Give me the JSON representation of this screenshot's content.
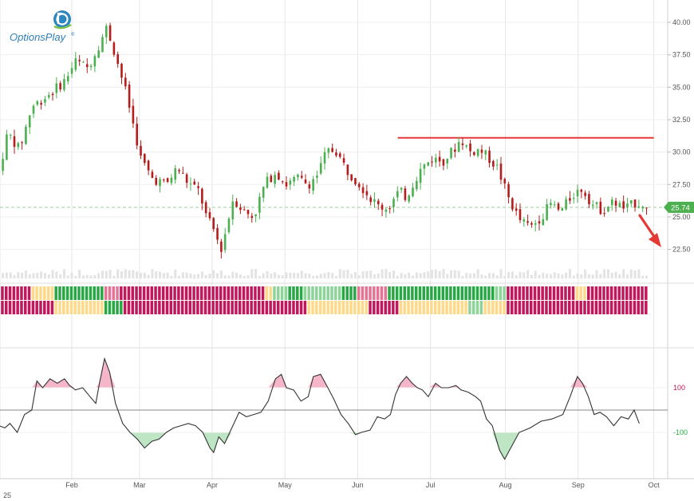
{
  "brand": {
    "name": "OptionsPlay",
    "trademark": "®"
  },
  "chart_data": [
    {
      "type": "candlestick",
      "title": "",
      "price_axis": {
        "ticks": [
          "40.00",
          "37.50",
          "35.00",
          "32.50",
          "30.00",
          "27.50",
          "25.00",
          "22.50"
        ],
        "range": [
          20.2,
          40.8
        ]
      },
      "last_price": {
        "value": 25.74,
        "label": "25.74"
      },
      "resistance": {
        "value": 31.1,
        "from": 5.48,
        "to": 9.0
      },
      "projection": {
        "direction": "down",
        "color": "#e53935"
      },
      "x_axis": {
        "labels": [
          "25",
          "Feb",
          "Mar",
          "Apr",
          "May",
          "Jun",
          "Jul",
          "Aug",
          "Sep",
          "Oct"
        ],
        "positions": [
          0,
          1,
          1.93,
          2.93,
          3.93,
          4.93,
          5.93,
          6.96,
          7.96,
          9.0
        ]
      },
      "anchors": [
        [
          0.0,
          28.5
        ],
        [
          0.12,
          31.5
        ],
        [
          0.28,
          30.2
        ],
        [
          0.45,
          33.5
        ],
        [
          0.7,
          34.5
        ],
        [
          0.9,
          35.5
        ],
        [
          1.05,
          37.0
        ],
        [
          1.22,
          36.5
        ],
        [
          1.35,
          38.0
        ],
        [
          1.48,
          39.6
        ],
        [
          1.6,
          37.5
        ],
        [
          1.75,
          34.5
        ],
        [
          1.85,
          32.0
        ],
        [
          1.95,
          29.5
        ],
        [
          2.1,
          28.0
        ],
        [
          2.3,
          27.5
        ],
        [
          2.45,
          28.8
        ],
        [
          2.6,
          27.6
        ],
        [
          2.75,
          27.0
        ],
        [
          2.85,
          25.0
        ],
        [
          2.95,
          24.0
        ],
        [
          3.05,
          22.5
        ],
        [
          3.12,
          24.0
        ],
        [
          3.22,
          26.5
        ],
        [
          3.35,
          25.5
        ],
        [
          3.5,
          25.0
        ],
        [
          3.65,
          27.5
        ],
        [
          3.8,
          28.5
        ],
        [
          3.95,
          27.5
        ],
        [
          4.1,
          28.0
        ],
        [
          4.25,
          27.5
        ],
        [
          4.38,
          28.3
        ],
        [
          4.5,
          30.0
        ],
        [
          4.62,
          30.2
        ],
        [
          4.78,
          28.6
        ],
        [
          4.95,
          27.6
        ],
        [
          5.1,
          26.5
        ],
        [
          5.22,
          25.8
        ],
        [
          5.35,
          25.7
        ],
        [
          5.5,
          27.0
        ],
        [
          5.6,
          26.5
        ],
        [
          5.68,
          27.5
        ],
        [
          5.8,
          28.7
        ],
        [
          5.95,
          29.5
        ],
        [
          6.1,
          29.3
        ],
        [
          6.25,
          30.2
        ],
        [
          6.35,
          31.0
        ],
        [
          6.48,
          30.0
        ],
        [
          6.6,
          30.2
        ],
        [
          6.72,
          29.6
        ],
        [
          6.85,
          28.8
        ],
        [
          7.0,
          26.5
        ],
        [
          7.15,
          24.8
        ],
        [
          7.3,
          24.2
        ],
        [
          7.45,
          25.0
        ],
        [
          7.58,
          26.0
        ],
        [
          7.72,
          25.4
        ],
        [
          7.88,
          26.7
        ],
        [
          8.02,
          27.2
        ],
        [
          8.15,
          26.0
        ],
        [
          8.3,
          25.5
        ],
        [
          8.45,
          26.2
        ],
        [
          8.6,
          25.6
        ],
        [
          8.75,
          26.1
        ],
        [
          8.85,
          26.0
        ],
        [
          8.9,
          25.5
        ]
      ]
    },
    {
      "type": "heatmap",
      "title": "",
      "rows": 2,
      "palette": {
        "bear": "#c2185b",
        "bear_light": "#e57395",
        "bull": "#27a844",
        "bull_light": "#8ed49a",
        "neutral": "#ffd98a"
      },
      "row1": [
        {
          "from": 0.0,
          "to": 0.45,
          "state": "bear"
        },
        {
          "from": 0.45,
          "to": 0.75,
          "state": "neutral"
        },
        {
          "from": 0.75,
          "to": 1.45,
          "state": "bull"
        },
        {
          "from": 1.45,
          "to": 1.65,
          "state": "bear_light"
        },
        {
          "from": 1.65,
          "to": 3.65,
          "state": "bear"
        },
        {
          "from": 3.65,
          "to": 3.78,
          "state": "neutral"
        },
        {
          "from": 3.78,
          "to": 3.95,
          "state": "bull_light"
        },
        {
          "from": 3.95,
          "to": 4.2,
          "state": "bull"
        },
        {
          "from": 4.2,
          "to": 4.7,
          "state": "bull_light"
        },
        {
          "from": 4.7,
          "to": 4.95,
          "state": "bull"
        },
        {
          "from": 4.95,
          "to": 5.35,
          "state": "bear_light"
        },
        {
          "from": 5.35,
          "to": 5.65,
          "state": "bull"
        },
        {
          "from": 5.65,
          "to": 6.82,
          "state": "bull"
        },
        {
          "from": 6.82,
          "to": 6.98,
          "state": "bull_light"
        },
        {
          "from": 6.98,
          "to": 7.9,
          "state": "bear"
        },
        {
          "from": 7.9,
          "to": 8.1,
          "state": "neutral"
        },
        {
          "from": 8.1,
          "to": 8.88,
          "state": "bear"
        }
      ],
      "row2": [
        {
          "from": 0.0,
          "to": 0.78,
          "state": "bear"
        },
        {
          "from": 0.78,
          "to": 1.45,
          "state": "neutral"
        },
        {
          "from": 1.45,
          "to": 1.7,
          "state": "bull"
        },
        {
          "from": 1.7,
          "to": 4.25,
          "state": "bear"
        },
        {
          "from": 4.25,
          "to": 5.1,
          "state": "neutral"
        },
        {
          "from": 5.1,
          "to": 5.5,
          "state": "bear"
        },
        {
          "from": 5.5,
          "to": 6.45,
          "state": "neutral"
        },
        {
          "from": 6.45,
          "to": 6.65,
          "state": "bull_light"
        },
        {
          "from": 6.65,
          "to": 6.98,
          "state": "neutral"
        },
        {
          "from": 6.98,
          "to": 8.88,
          "state": "bear"
        }
      ]
    },
    {
      "type": "line",
      "title": "",
      "y_ticks": [
        {
          "value": 100,
          "label": "100",
          "color": "#c2185b"
        },
        {
          "value": -100,
          "label": "-100",
          "color": "#27a844"
        }
      ],
      "y_range": [
        -300,
        275
      ],
      "upper": 100,
      "lower": -100,
      "points": [
        [
          0.0,
          -70
        ],
        [
          0.08,
          -80
        ],
        [
          0.15,
          -60
        ],
        [
          0.25,
          -100
        ],
        [
          0.35,
          -20
        ],
        [
          0.45,
          0
        ],
        [
          0.52,
          130
        ],
        [
          0.6,
          100
        ],
        [
          0.7,
          140
        ],
        [
          0.8,
          120
        ],
        [
          0.9,
          140
        ],
        [
          0.97,
          110
        ],
        [
          1.05,
          90
        ],
        [
          1.15,
          100
        ],
        [
          1.25,
          60
        ],
        [
          1.33,
          30
        ],
        [
          1.38,
          120
        ],
        [
          1.45,
          230
        ],
        [
          1.52,
          170
        ],
        [
          1.6,
          30
        ],
        [
          1.7,
          -60
        ],
        [
          1.8,
          -100
        ],
        [
          1.9,
          -130
        ],
        [
          2.0,
          -170
        ],
        [
          2.1,
          -140
        ],
        [
          2.2,
          -130
        ],
        [
          2.3,
          -100
        ],
        [
          2.4,
          -80
        ],
        [
          2.5,
          -70
        ],
        [
          2.6,
          -60
        ],
        [
          2.7,
          -70
        ],
        [
          2.8,
          -100
        ],
        [
          2.9,
          -170
        ],
        [
          2.95,
          -190
        ],
        [
          3.02,
          -120
        ],
        [
          3.1,
          -150
        ],
        [
          3.2,
          -80
        ],
        [
          3.3,
          -10
        ],
        [
          3.4,
          -30
        ],
        [
          3.5,
          -20
        ],
        [
          3.6,
          -10
        ],
        [
          3.7,
          40
        ],
        [
          3.8,
          140
        ],
        [
          3.88,
          160
        ],
        [
          3.95,
          100
        ],
        [
          4.05,
          90
        ],
        [
          4.15,
          40
        ],
        [
          4.25,
          60
        ],
        [
          4.32,
          150
        ],
        [
          4.42,
          160
        ],
        [
          4.52,
          100
        ],
        [
          4.6,
          50
        ],
        [
          4.7,
          -20
        ],
        [
          4.8,
          -60
        ],
        [
          4.9,
          -110
        ],
        [
          4.98,
          -100
        ],
        [
          5.1,
          -90
        ],
        [
          5.2,
          -30
        ],
        [
          5.3,
          -40
        ],
        [
          5.38,
          -20
        ],
        [
          5.45,
          70
        ],
        [
          5.52,
          120
        ],
        [
          5.6,
          150
        ],
        [
          5.68,
          120
        ],
        [
          5.75,
          100
        ],
        [
          5.82,
          90
        ],
        [
          5.9,
          60
        ],
        [
          6.0,
          120
        ],
        [
          6.08,
          100
        ],
        [
          6.18,
          100
        ],
        [
          6.28,
          110
        ],
        [
          6.35,
          90
        ],
        [
          6.45,
          80
        ],
        [
          6.55,
          60
        ],
        [
          6.62,
          40
        ],
        [
          6.7,
          -40
        ],
        [
          6.78,
          -70
        ],
        [
          6.88,
          -180
        ],
        [
          6.95,
          -220
        ],
        [
          7.05,
          -160
        ],
        [
          7.15,
          -100
        ],
        [
          7.3,
          -80
        ],
        [
          7.45,
          -50
        ],
        [
          7.6,
          -40
        ],
        [
          7.75,
          -20
        ],
        [
          7.85,
          60
        ],
        [
          7.95,
          150
        ],
        [
          8.02,
          120
        ],
        [
          8.1,
          60
        ],
        [
          8.18,
          -20
        ],
        [
          8.26,
          -10
        ],
        [
          8.35,
          -30
        ],
        [
          8.45,
          -70
        ],
        [
          8.55,
          -30
        ],
        [
          8.65,
          -40
        ],
        [
          8.73,
          0
        ],
        [
          8.8,
          -60
        ]
      ]
    }
  ]
}
